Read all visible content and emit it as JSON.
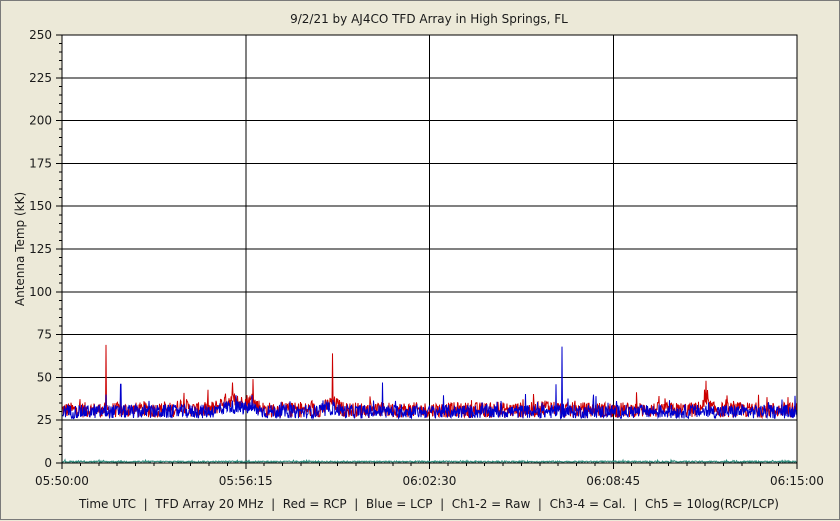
{
  "chart_data": {
    "type": "line",
    "title": "9/2/21  by  AJ4CO TFD Array  in  High Springs, FL",
    "ylabel": "Antenna Temp (kK)",
    "footer": "Time UTC  |  TFD Array 20 MHz  |  Red = RCP  |  Blue = LCP  |  Ch1-2 = Raw  |  Ch3-4 = Cal.  |  Ch5 = 10log(RCP/LCP)",
    "ylim": [
      0,
      250
    ],
    "y_ticks": [
      "0",
      "25",
      "50",
      "75",
      "100",
      "125",
      "150",
      "175",
      "200",
      "225",
      "250"
    ],
    "x_ticks": [
      "05:50:00",
      "05:56:15",
      "06:02:30",
      "06:08:45",
      "06:15:00"
    ],
    "x_range_minutes": [
      0,
      25
    ],
    "grid": true,
    "colors": {
      "rcp": "#cc0000",
      "lcp": "#0000cc",
      "ch5": "#2e8b7a",
      "grid": "#000000",
      "plot_bg": "#ffffff"
    },
    "series": [
      {
        "name": "Red = RCP",
        "color": "#cc0000",
        "baseline": 31,
        "spikes": [
          {
            "t": 1.5,
            "value": 69
          },
          {
            "t": 5.8,
            "value": 47
          },
          {
            "t": 6.5,
            "value": 49
          },
          {
            "t": 9.2,
            "value": 64
          },
          {
            "t": 21.9,
            "value": 48
          }
        ]
      },
      {
        "name": "Blue = LCP",
        "color": "#0000cc",
        "baseline": 30,
        "spikes": [
          {
            "t": 1.5,
            "value": 40
          },
          {
            "t": 2.0,
            "value": 46
          },
          {
            "t": 10.9,
            "value": 47
          },
          {
            "t": 16.8,
            "value": 46
          },
          {
            "t": 17.0,
            "value": 68
          }
        ]
      },
      {
        "name": "Ch5 = 10log(RCP/LCP)",
        "color": "#2e8b7a",
        "baseline": 0.8
      }
    ]
  }
}
